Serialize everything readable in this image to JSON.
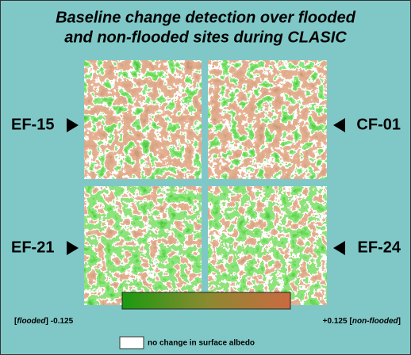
{
  "title": [
    "Baseline change detection over flooded",
    "and non-flooded sites during CLASIC"
  ],
  "panels": [
    {
      "label": "EF-15"
    },
    {
      "label": "CF-01"
    },
    {
      "label": "EF-21"
    },
    {
      "label": "EF-24"
    }
  ],
  "colorbar": {
    "min_label": {
      "open": "[",
      "term": "flooded",
      "close": "]",
      "value": "-0.125"
    },
    "max_label": {
      "value": "+0.125",
      "open": "[",
      "term": "non-flooded",
      "close": "]"
    }
  },
  "legend": {
    "label": "no change in surface albedo"
  }
}
